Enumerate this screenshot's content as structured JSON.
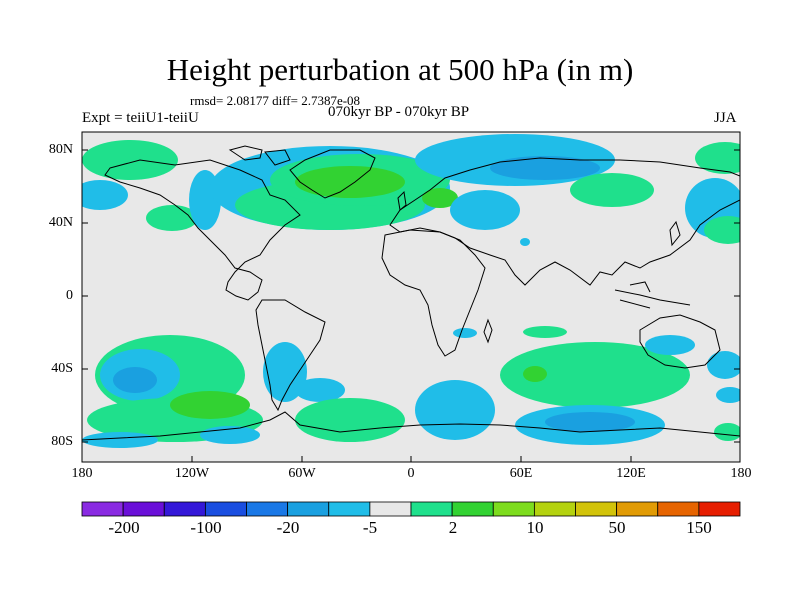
{
  "title": "Height perturbation at 500 hPa (in m)",
  "stats": "rmsd= 2.08177 diff= 2.7387e-08",
  "expt": "Expt = teiiU1-teiiU",
  "period": "070kyr BP - 070kyr BP",
  "season": "JJA",
  "y_ticks": [
    "80N",
    "40N",
    "0",
    "40S",
    "80S"
  ],
  "x_ticks": [
    "180",
    "120W",
    "60W",
    "0",
    "60E",
    "120E",
    "180"
  ],
  "colorbar": {
    "labels": [
      "-200",
      "-100",
      "-20",
      "-5",
      "2",
      "10",
      "50",
      "150"
    ],
    "colors": [
      "#8a2be2",
      "#6a0fd8",
      "#3418d8",
      "#1a4ee0",
      "#1a78e6",
      "#1aa0e0",
      "#20bde8",
      "#e8e8e8",
      "#1fe08c",
      "#32d232",
      "#7ddc1e",
      "#b4d20f",
      "#d2c30a",
      "#e19b05",
      "#e66400",
      "#e61e00"
    ]
  },
  "colors": {
    "land_bg": "#e8e8e8",
    "coast": "#000000"
  }
}
